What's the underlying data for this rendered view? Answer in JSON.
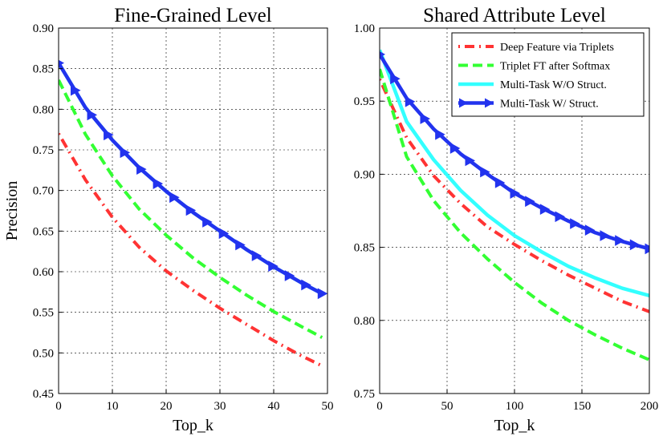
{
  "chart_data": [
    {
      "type": "line",
      "title": "Fine-Grained Level",
      "xlabel": "Top_k",
      "ylabel": "Precision",
      "xlim": [
        0,
        50
      ],
      "ylim": [
        0.45,
        0.9
      ],
      "xticks": [
        "0",
        "10",
        "20",
        "30",
        "40",
        "50"
      ],
      "yticks": [
        "0.45",
        "0.50",
        "0.55",
        "0.60",
        "0.65",
        "0.70",
        "0.75",
        "0.80",
        "0.85",
        "0.90"
      ],
      "grid": true,
      "legend": null,
      "x": [
        0,
        5,
        10,
        15,
        20,
        25,
        30,
        35,
        40,
        45,
        49
      ],
      "series": [
        {
          "name": "Deep Feature via Triplets",
          "color": "#ff3333",
          "style": "dashdot",
          "values": [
            0.77,
            0.713,
            0.667,
            0.63,
            0.601,
            0.577,
            0.555,
            0.535,
            0.515,
            0.497,
            0.484
          ]
        },
        {
          "name": "Triplet FT after Softmax",
          "color": "#33ff33",
          "style": "dashed",
          "values": [
            0.836,
            0.769,
            0.718,
            0.677,
            0.645,
            0.617,
            0.593,
            0.571,
            0.551,
            0.533,
            0.519
          ]
        },
        {
          "name": "Multi-Task W/O Struct.",
          "color": "#33ffff",
          "style": "solid",
          "values": [
            0.857,
            0.802,
            0.762,
            0.728,
            0.699,
            0.673,
            0.65,
            0.627,
            0.606,
            0.587,
            0.573
          ]
        },
        {
          "name": "Multi-Task W/ Struct.",
          "color": "#2233ee",
          "style": "solid-triangles",
          "values": [
            0.857,
            0.802,
            0.762,
            0.728,
            0.699,
            0.673,
            0.65,
            0.627,
            0.606,
            0.587,
            0.573
          ]
        }
      ]
    },
    {
      "type": "line",
      "title": "Shared Attribute Level",
      "xlabel": "Top_k",
      "ylabel": "",
      "xlim": [
        0,
        200
      ],
      "ylim": [
        0.75,
        1.0
      ],
      "xticks": [
        "0",
        "50",
        "100",
        "150",
        "200"
      ],
      "yticks": [
        "0.75",
        "0.80",
        "0.85",
        "0.90",
        "0.95",
        "1.00"
      ],
      "grid": true,
      "legend": "top-right",
      "x": [
        0,
        20,
        40,
        60,
        80,
        100,
        120,
        140,
        160,
        180,
        200
      ],
      "series": [
        {
          "name": "Deep Feature via Triplets",
          "color": "#ff3333",
          "style": "dashdot",
          "values": [
            0.965,
            0.925,
            0.899,
            0.88,
            0.864,
            0.852,
            0.841,
            0.831,
            0.822,
            0.813,
            0.806
          ]
        },
        {
          "name": "Triplet FT after Softmax",
          "color": "#33ff33",
          "style": "dashed",
          "values": [
            0.972,
            0.912,
            0.882,
            0.86,
            0.842,
            0.826,
            0.812,
            0.8,
            0.79,
            0.781,
            0.773
          ]
        },
        {
          "name": "Multi-Task W/O Struct.",
          "color": "#33ffff",
          "style": "solid",
          "values": [
            0.985,
            0.936,
            0.91,
            0.889,
            0.872,
            0.858,
            0.847,
            0.837,
            0.829,
            0.822,
            0.817
          ]
        },
        {
          "name": "Multi-Task W/ Struct.",
          "color": "#2233ee",
          "style": "solid-triangles",
          "values": [
            0.982,
            0.952,
            0.931,
            0.914,
            0.9,
            0.887,
            0.877,
            0.868,
            0.86,
            0.854,
            0.849
          ]
        }
      ]
    }
  ]
}
